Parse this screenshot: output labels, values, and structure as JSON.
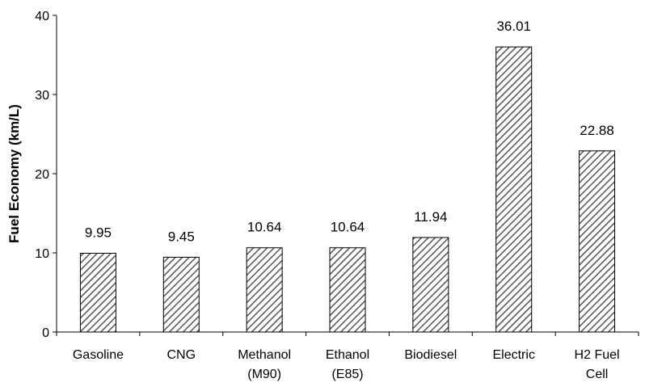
{
  "chart_data": {
    "type": "bar",
    "categories": [
      [
        "Gasoline"
      ],
      [
        "CNG"
      ],
      [
        "Methanol",
        "(M90)"
      ],
      [
        "Ethanol",
        "(E85)"
      ],
      [
        "Biodiesel"
      ],
      [
        "Electric"
      ],
      [
        "H2 Fuel",
        "Cell"
      ]
    ],
    "values": [
      9.95,
      9.45,
      10.64,
      10.64,
      11.94,
      36.01,
      22.88
    ],
    "data_labels": [
      "9.95",
      "9.45",
      "10.64",
      "10.64",
      "11.94",
      "36.01",
      "22.88"
    ],
    "title": "",
    "xlabel": "",
    "ylabel": "Fuel Economy (km/L)",
    "ylim": [
      0,
      40
    ],
    "yticks": [
      "0",
      "10",
      "20",
      "30",
      "40"
    ],
    "grid": false,
    "legend": "none",
    "bar_fill": "diagonal-hatch",
    "colors": {
      "bar_stroke": "#000000",
      "hatch": "#555555",
      "axis": "#000000"
    }
  }
}
